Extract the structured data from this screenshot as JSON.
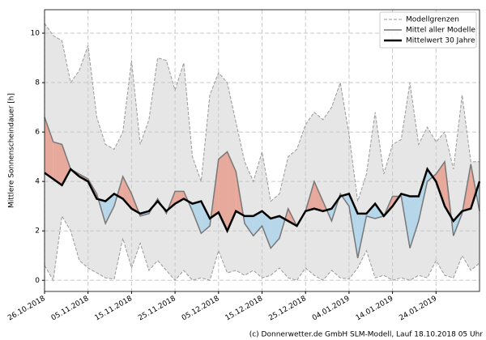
{
  "chart_data": {
    "type": "range-line",
    "ylabel": "Mittlere Sonnenscheindauer [h]",
    "footer": "(c) Donnerwetter.de GmbH SLM-Modell, Lauf 18.10.2018 05 Uhr",
    "x": [
      "26.10.2018",
      "28.10.2018",
      "30.10.2018",
      "01.11.2018",
      "03.11.2018",
      "05.11.2018",
      "07.11.2018",
      "09.11.2018",
      "11.11.2018",
      "13.11.2018",
      "15.11.2018",
      "17.11.2018",
      "19.11.2018",
      "21.11.2018",
      "23.11.2018",
      "25.11.2018",
      "27.11.2018",
      "29.11.2018",
      "01.12.2018",
      "03.12.2018",
      "05.12.2018",
      "07.12.2018",
      "09.12.2018",
      "11.12.2018",
      "13.12.2018",
      "15.12.2018",
      "17.12.2018",
      "19.12.2018",
      "21.12.2018",
      "23.12.2018",
      "25.12.2018",
      "27.12.2018",
      "29.12.2018",
      "31.12.2018",
      "02.01.2019",
      "04.01.2019",
      "06.01.2019",
      "08.01.2019",
      "10.01.2019",
      "12.01.2019",
      "14.01.2019",
      "16.01.2019",
      "18.01.2019",
      "20.01.2019",
      "22.01.2019",
      "24.01.2019",
      "26.01.2019",
      "28.01.2019",
      "30.01.2019",
      "01.02.2019",
      "03.02.2019"
    ],
    "series": [
      {
        "name": "Modellgrenzen",
        "color": "#999999",
        "band_color": "#e6e6e6",
        "upper": [
          10.4,
          9.9,
          9.7,
          8.0,
          8.5,
          9.5,
          6.6,
          5.5,
          5.3,
          6.0,
          8.9,
          5.5,
          6.5,
          9.0,
          8.9,
          7.7,
          8.8,
          5.0,
          4.0,
          7.5,
          8.4,
          8.0,
          6.4,
          4.8,
          4.0,
          5.2,
          3.2,
          3.5,
          5.0,
          5.3,
          6.3,
          6.8,
          6.5,
          7.0,
          8.0,
          5.9,
          3.2,
          4.3,
          6.8,
          4.3,
          5.5,
          5.7,
          8.0,
          5.5,
          6.2,
          5.6,
          6.0,
          4.5,
          7.5,
          4.8,
          4.8
        ],
        "lower": [
          0.6,
          0.0,
          2.6,
          2.0,
          0.8,
          0.5,
          0.3,
          0.1,
          0.05,
          1.7,
          0.5,
          1.5,
          0.4,
          0.8,
          0.4,
          0.0,
          0.4,
          0.0,
          0.1,
          0.0,
          1.2,
          0.3,
          0.4,
          0.2,
          0.4,
          0.1,
          0.2,
          0.5,
          0.1,
          0.0,
          0.5,
          0.2,
          0.0,
          0.4,
          0.1,
          0.05,
          0.5,
          1.2,
          0.1,
          0.2,
          0.0,
          0.1,
          0.0,
          0.2,
          0.1,
          0.8,
          0.2,
          0.1,
          1.0,
          0.4,
          0.7
        ]
      },
      {
        "name": "Mittel aller Modelle",
        "color": "#777777",
        "values": [
          6.6,
          5.6,
          5.5,
          4.5,
          4.3,
          4.1,
          3.5,
          2.3,
          3.0,
          4.2,
          3.5,
          2.6,
          2.7,
          3.3,
          2.7,
          3.6,
          3.6,
          2.8,
          1.9,
          2.2,
          4.9,
          5.2,
          4.4,
          2.3,
          1.8,
          2.2,
          1.3,
          1.7,
          2.9,
          2.2,
          2.8,
          4.0,
          3.2,
          2.4,
          3.5,
          3.0,
          0.9,
          2.6,
          2.5,
          2.6,
          3.4,
          3.4,
          1.3,
          2.4,
          4.0,
          4.3,
          4.8,
          1.8,
          2.7,
          4.7,
          2.8
        ]
      },
      {
        "name": "Mittelwert 30 Jahre",
        "color": "#000000",
        "values": [
          4.35,
          4.1,
          3.85,
          4.5,
          4.2,
          4.0,
          3.3,
          3.2,
          3.5,
          3.3,
          2.9,
          2.7,
          2.8,
          3.2,
          2.8,
          3.1,
          3.3,
          3.1,
          3.2,
          2.5,
          2.75,
          2.0,
          2.8,
          2.6,
          2.6,
          2.8,
          2.5,
          2.6,
          2.4,
          2.2,
          2.8,
          2.9,
          2.8,
          2.9,
          3.4,
          3.5,
          2.7,
          2.7,
          3.1,
          2.6,
          3.0,
          3.5,
          3.4,
          3.4,
          4.5,
          4.0,
          3.0,
          2.4,
          2.8,
          2.9,
          4.0
        ]
      }
    ],
    "fill_above_color": "#e8a99d",
    "fill_below_color": "#b6d6e9",
    "xlim": [
      "26.10.2018",
      "03.02.2019"
    ],
    "xticks": [
      "26.10.2018",
      "05.11.2018",
      "15.11.2018",
      "25.11.2018",
      "05.12.2018",
      "15.12.2018",
      "25.12.2018",
      "04.01.2019",
      "14.01.2019",
      "24.01.2019"
    ],
    "ylim": [
      -0.45,
      10.95
    ],
    "yticks": [
      0,
      2,
      4,
      6,
      8,
      10
    ],
    "grid": true,
    "legend": "upper right"
  }
}
